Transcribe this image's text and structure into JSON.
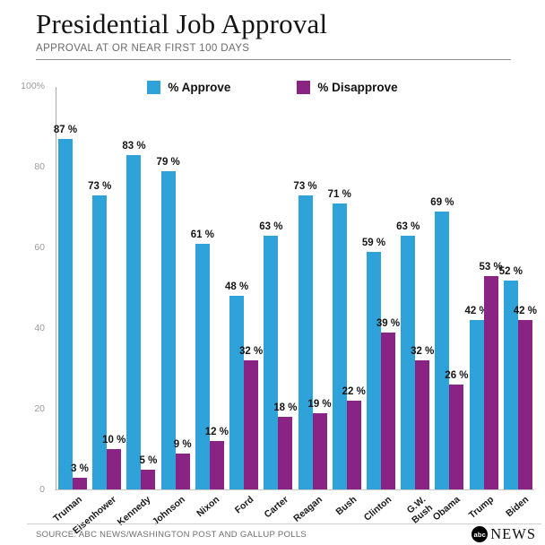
{
  "header": {
    "title": "Presidential Job Approval",
    "subtitle": "APPROVAL AT OR NEAR FIRST 100 DAYS"
  },
  "colors": {
    "approve": "#2fa2da",
    "disapprove": "#8a2484"
  },
  "legend": [
    {
      "label": "% Approve",
      "color": "#2fa2da"
    },
    {
      "label": "% Disapprove",
      "color": "#8a2484"
    }
  ],
  "chart_data": {
    "type": "bar",
    "title": "Presidential Job Approval",
    "subtitle": "APPROVAL AT OR NEAR FIRST 100 DAYS",
    "categories": [
      "Truman",
      "Eisenhower",
      "Kennedy",
      "Johnson",
      "Nixon",
      "Ford",
      "Carter",
      "Reagan",
      "Bush",
      "Clinton",
      "G.W.\nBush",
      "Obama",
      "Trump",
      "Biden"
    ],
    "series": [
      {
        "name": "% Approve",
        "color": "#2fa2da",
        "values": [
          87,
          73,
          83,
          79,
          61,
          48,
          63,
          73,
          71,
          59,
          63,
          69,
          42,
          52
        ]
      },
      {
        "name": "% Disapprove",
        "color": "#8a2484",
        "values": [
          3,
          10,
          5,
          9,
          12,
          32,
          18,
          19,
          22,
          39,
          32,
          26,
          53,
          42
        ]
      }
    ],
    "xlabel": "",
    "ylabel": "",
    "ylim": [
      0,
      100
    ],
    "yticks": [
      {
        "label": "100%",
        "value": 100
      },
      {
        "label": "80",
        "value": 80
      },
      {
        "label": "60",
        "value": 60
      },
      {
        "label": "40",
        "value": 40
      },
      {
        "label": "20",
        "value": 20
      },
      {
        "label": "0",
        "value": 0
      }
    ],
    "grid": false,
    "legend_position": "top",
    "value_label_suffix": " %"
  },
  "footer": {
    "source": "SOURCE: ABC NEWS/WASHINGTON POST AND GALLUP POLLS",
    "logo_abc": "abc",
    "logo_news": "NEWS"
  }
}
